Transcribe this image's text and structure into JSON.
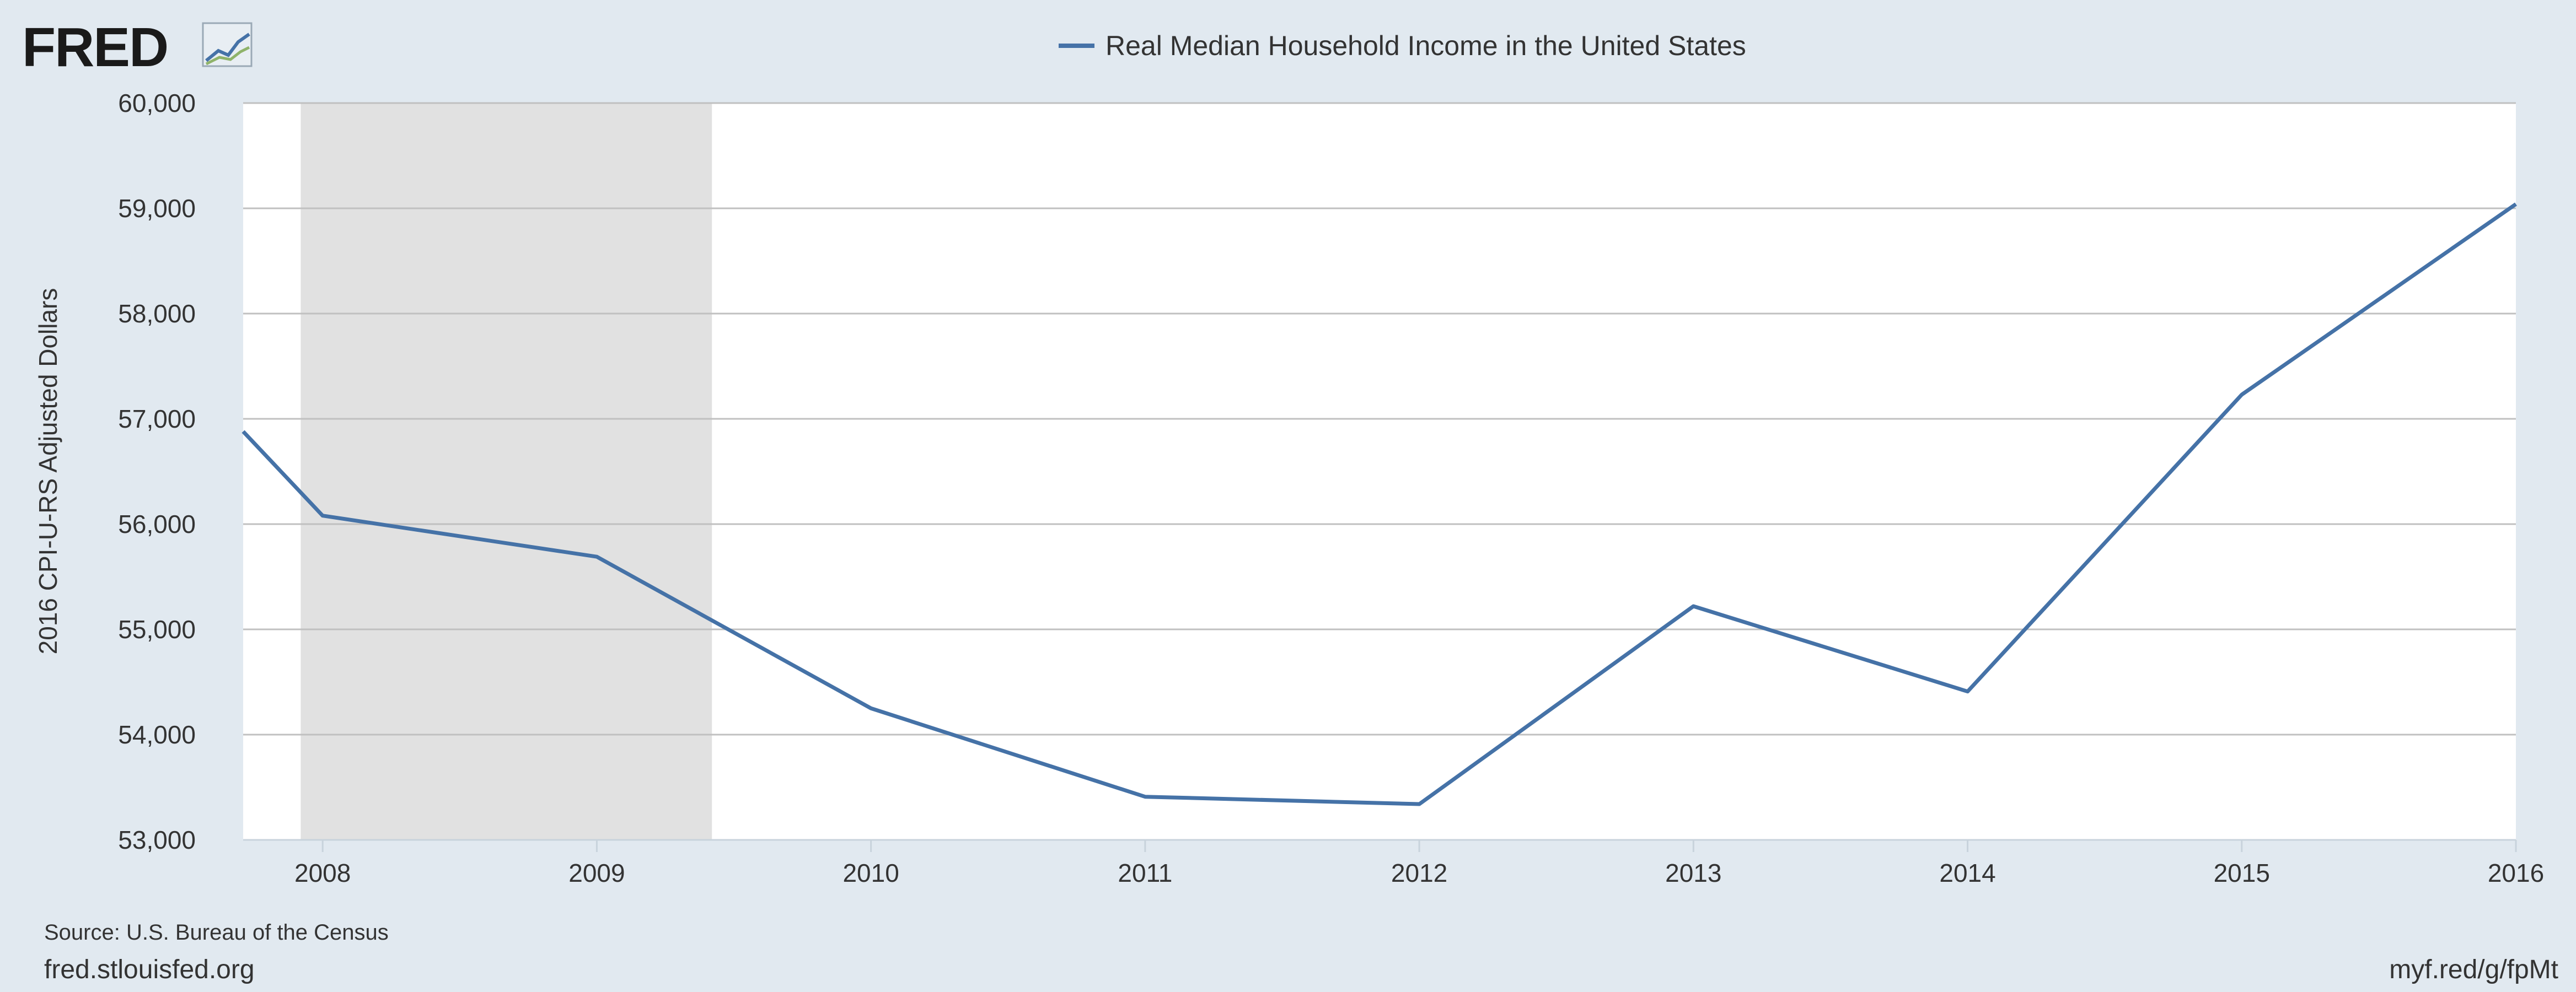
{
  "header": {
    "logo_text": "FRED",
    "logo_icon": "trend-chart-icon"
  },
  "colors": {
    "background": "#e1e9f0",
    "plot_background": "#ffffff",
    "series": "#4572a7",
    "recession": "#e1e1e1",
    "gridline": "#c0c0c0"
  },
  "chart_data": {
    "type": "line",
    "title": "",
    "xlabel": "",
    "ylabel": "2016 CPI-U-RS Adjusted Dollars",
    "ylim": [
      53000,
      60000
    ],
    "xlim": [
      2007.71,
      2016.0
    ],
    "grid": true,
    "legend_position": "top-center",
    "yticks": [
      53000,
      54000,
      55000,
      56000,
      57000,
      58000,
      59000,
      60000
    ],
    "ytick_labels": [
      "53,000",
      "54,000",
      "55,000",
      "56,000",
      "57,000",
      "58,000",
      "59,000",
      "60,000"
    ],
    "xticks": [
      2008,
      2009,
      2010,
      2011,
      2012,
      2013,
      2014,
      2015,
      2016
    ],
    "xtick_labels": [
      "2008",
      "2009",
      "2010",
      "2011",
      "2012",
      "2013",
      "2014",
      "2015",
      "2016"
    ],
    "recession_shading": [
      {
        "start": 2007.92,
        "end": 2009.42
      }
    ],
    "series": [
      {
        "name": "Real Median Household Income in the United States",
        "x": [
          2007.71,
          2008,
          2009,
          2010,
          2011,
          2012,
          2013,
          2014,
          2015,
          2016
        ],
        "values": [
          56880,
          56080,
          55690,
          54250,
          53410,
          53340,
          55220,
          54410,
          57230,
          59040
        ]
      }
    ]
  },
  "footer": {
    "source": "Source: U.S. Bureau of the Census",
    "site": "fred.stlouisfed.org",
    "short_link": "myf.red/g/fpMt"
  }
}
